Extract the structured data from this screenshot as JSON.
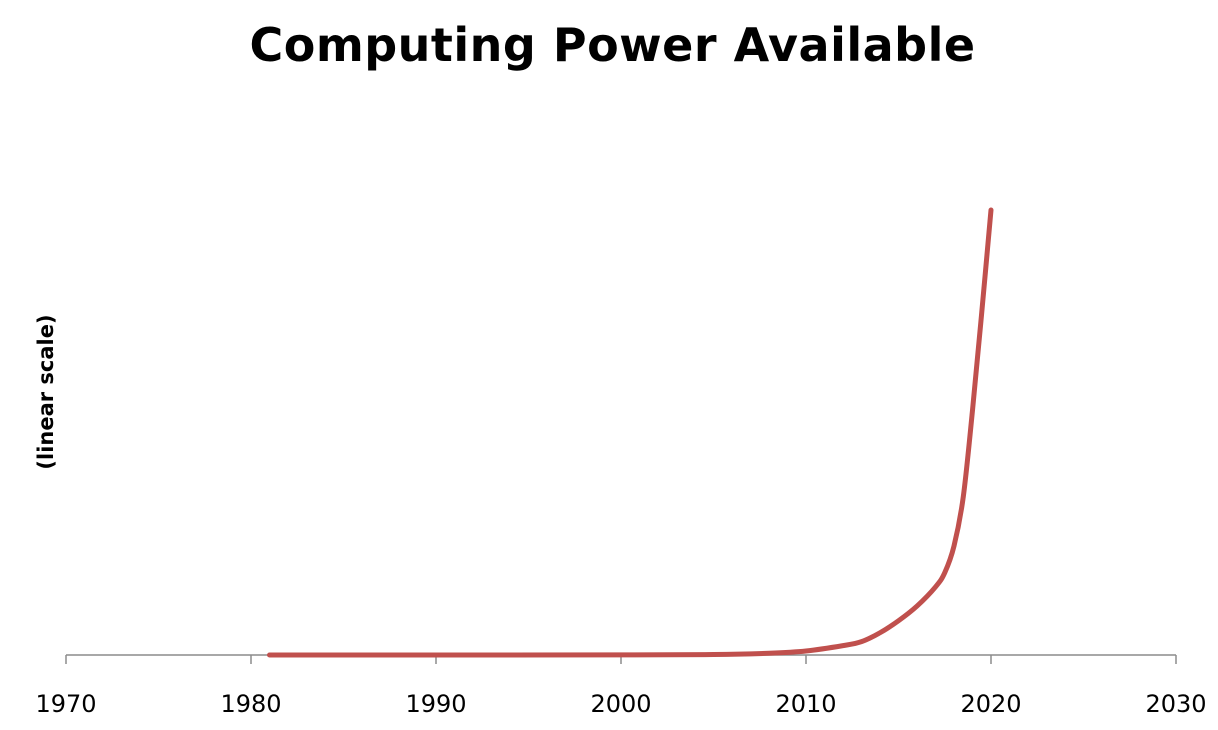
{
  "chart_data": {
    "type": "line",
    "title": "Computing Power Available",
    "xlabel": "",
    "ylabel": "(linear scale)",
    "xlim": [
      1970,
      2030
    ],
    "ylim": [
      0,
      100
    ],
    "x_ticks": [
      "1970",
      "1980",
      "1990",
      "2000",
      "2010",
      "2020",
      "2030"
    ],
    "grid": false,
    "series": [
      {
        "color": "#c0504d",
        "x": [
          1981,
          1990,
          2000,
          2005,
          2008,
          2010,
          2012,
          2013,
          2014,
          2015,
          2016,
          2017,
          2017.5,
          2018,
          2018.5,
          2019,
          2019.5,
          2020
        ],
        "y": [
          0,
          0,
          0.02,
          0.1,
          0.4,
          0.9,
          2.1,
          3.0,
          5.0,
          7.7,
          11.0,
          15.3,
          18.5,
          24.5,
          35.5,
          55.0,
          77.0,
          100.0
        ]
      }
    ]
  }
}
